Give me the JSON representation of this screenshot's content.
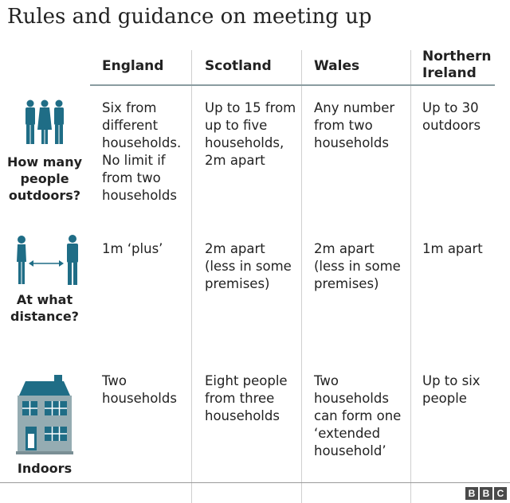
{
  "title": "Rules and guidance on meeting up",
  "columns": [
    "England",
    "Scotland",
    "Wales",
    "Northern Ireland"
  ],
  "rows": [
    {
      "label": "How many people outdoors?",
      "icon": "three-people-icon",
      "cells": [
        "Six from different households. No limit if from two households",
        "Up to 15 from up to five households, 2m apart",
        "Any number from two households",
        "Up to 30 outdoors"
      ]
    },
    {
      "label": "At what distance?",
      "icon": "two-people-distance-icon",
      "cells": [
        "1m ‘plus’",
        "2m apart (less in some premises)",
        "2m apart (less in some premises)",
        "1m apart"
      ]
    },
    {
      "label": "Indoors",
      "icon": "house-icon",
      "cells": [
        "Two households",
        "Eight people from three households",
        "Two households can form one ‘extended household’",
        "Up to six people"
      ]
    }
  ],
  "colors": {
    "icon": "#1f6d86",
    "house_wall": "#95acb2",
    "roof": "#1f6d86"
  },
  "logo": [
    "B",
    "B",
    "C"
  ]
}
